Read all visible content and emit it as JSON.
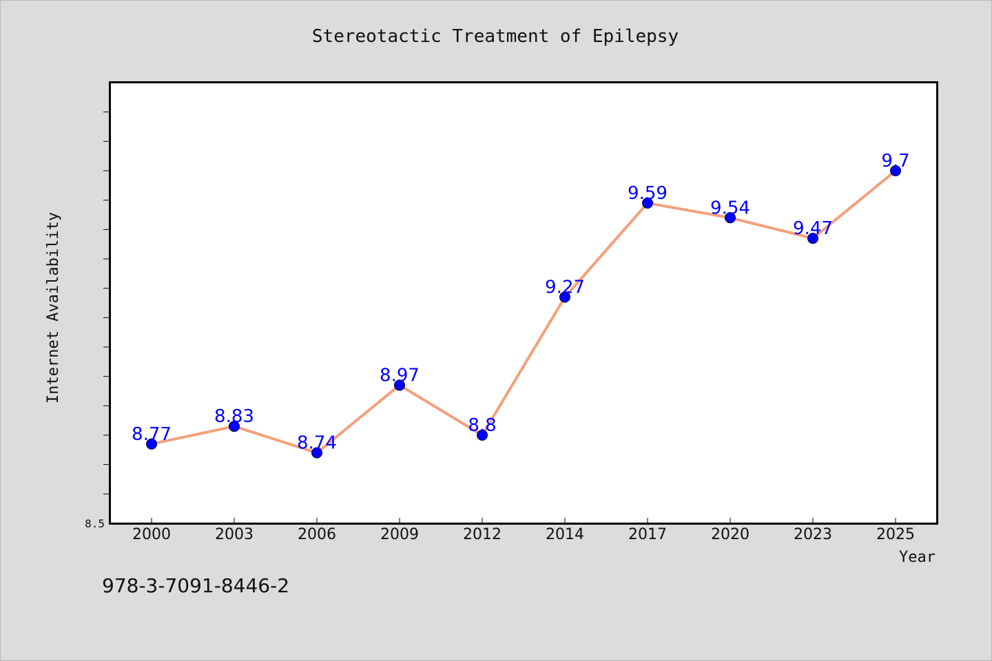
{
  "chart_data": {
    "type": "line",
    "title": "Stereotactic Treatment of Epilepsy",
    "xlabel": "Year",
    "ylabel": "Internet Availability",
    "categories": [
      "2000",
      "2003",
      "2006",
      "2009",
      "2012",
      "2014",
      "2017",
      "2020",
      "2023",
      "2025"
    ],
    "series": [
      {
        "values": [
          8.77,
          8.83,
          8.74,
          8.97,
          8.8,
          9.27,
          9.59,
          9.54,
          9.47,
          9.7
        ]
      }
    ],
    "data_labels": [
      "8.77",
      "8.83",
      "8.74",
      "8.97",
      "8.8",
      "9.27",
      "9.59",
      "9.54",
      "9.47",
      "9.7"
    ],
    "ylim": [
      8.5,
      10.0
    ],
    "yticks_labeled": [
      {
        "value": 8.5,
        "label": "8.5"
      }
    ],
    "ytick_minor_step": 0.1,
    "grid": false,
    "colors": {
      "line": "#f4a07a",
      "marker": "#0000ff",
      "label": "#0000ff",
      "background": "#dcdcdc",
      "plot_bg": "#ffffff"
    }
  },
  "footer": {
    "isbn": "978-3-7091-8446-2"
  }
}
